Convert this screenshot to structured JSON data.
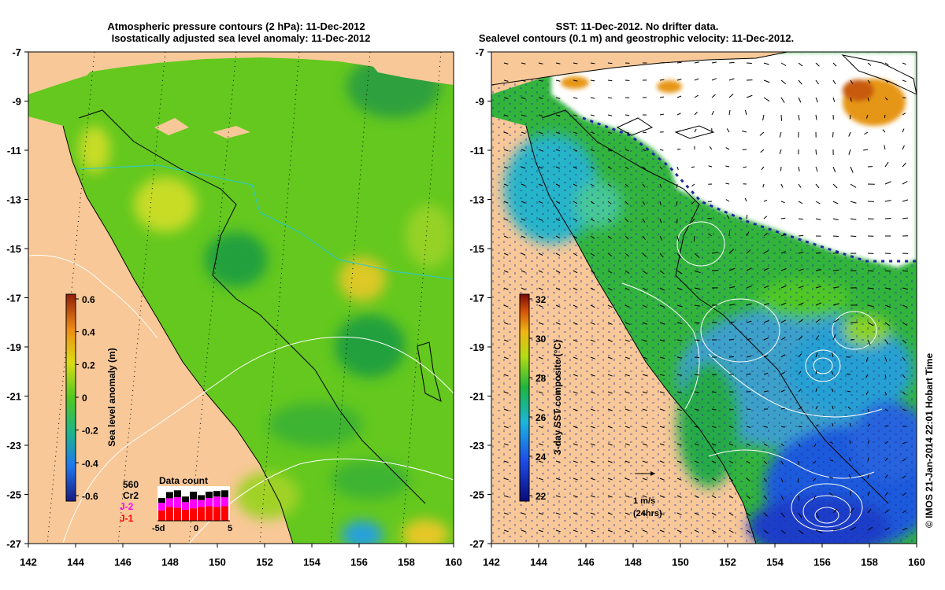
{
  "left_panel": {
    "title_line1": "Atmospheric pressure contours (2 hPa): 11-Dec-2012",
    "title_line2": "Isostatically adjusted sea level anomaly: 11-Dec-2012",
    "colorbar": {
      "label": "Sea level anomaly (m)",
      "ticks": [
        "0.6",
        "0.4",
        "0.2",
        "0",
        "-0.2",
        "-0.4",
        "-0.6"
      ]
    },
    "data_count": {
      "title": "Data count",
      "total_label": "560",
      "series": [
        {
          "name": "Cr2",
          "color": "#000000"
        },
        {
          "name": "J-2",
          "color": "#ff00ff"
        },
        {
          "name": "J-1",
          "color": "#ff0000"
        }
      ],
      "x_ticks": [
        "-5d",
        "0",
        "5"
      ],
      "bars": [
        {
          "j1": 0.3,
          "j2": 0.22,
          "cr2": 0.14
        },
        {
          "j1": 0.4,
          "j2": 0.25,
          "cr2": 0.18
        },
        {
          "j1": 0.38,
          "j2": 0.3,
          "cr2": 0.2
        },
        {
          "j1": 0.32,
          "j2": 0.22,
          "cr2": 0.16
        },
        {
          "j1": 0.36,
          "j2": 0.26,
          "cr2": 0.22
        },
        {
          "j1": 0.4,
          "j2": 0.2,
          "cr2": 0.14
        },
        {
          "j1": 0.42,
          "j2": 0.24,
          "cr2": 0.18
        },
        {
          "j1": 0.4,
          "j2": 0.3,
          "cr2": 0.16
        },
        {
          "j1": 0.42,
          "j2": 0.26,
          "cr2": 0.2
        }
      ]
    }
  },
  "right_panel": {
    "title_line1": "SST: 11-Dec-2012. No drifter data.",
    "title_line2": "Sealevel contours (0.1 m) and geostrophic velocity: 11-Dec-2012.",
    "colorbar": {
      "label": "3-day SST composite (°C)",
      "ticks": [
        "32",
        "30",
        "28",
        "26",
        "24",
        "22"
      ]
    },
    "scale_arrow_label": "1 m/s",
    "scale_arrow_sublabel": "(24hrs)"
  },
  "axes": {
    "x_ticks": [
      "142",
      "144",
      "146",
      "148",
      "150",
      "152",
      "154",
      "156",
      "158",
      "160"
    ],
    "y_ticks": [
      "-7",
      "-9",
      "-11",
      "-13",
      "-15",
      "-17",
      "-19",
      "-21",
      "-23",
      "-25",
      "-27"
    ]
  },
  "credit": "© IMOS 21-Jan-2014 22:01 Hobart Time",
  "colors": {
    "land": "#f8c898",
    "ocean_green": "#64c81e",
    "ocean_deep_green": "#1e9628",
    "ocean_cyan": "#28b4c8",
    "ocean_blue": "#1e3cc8"
  }
}
